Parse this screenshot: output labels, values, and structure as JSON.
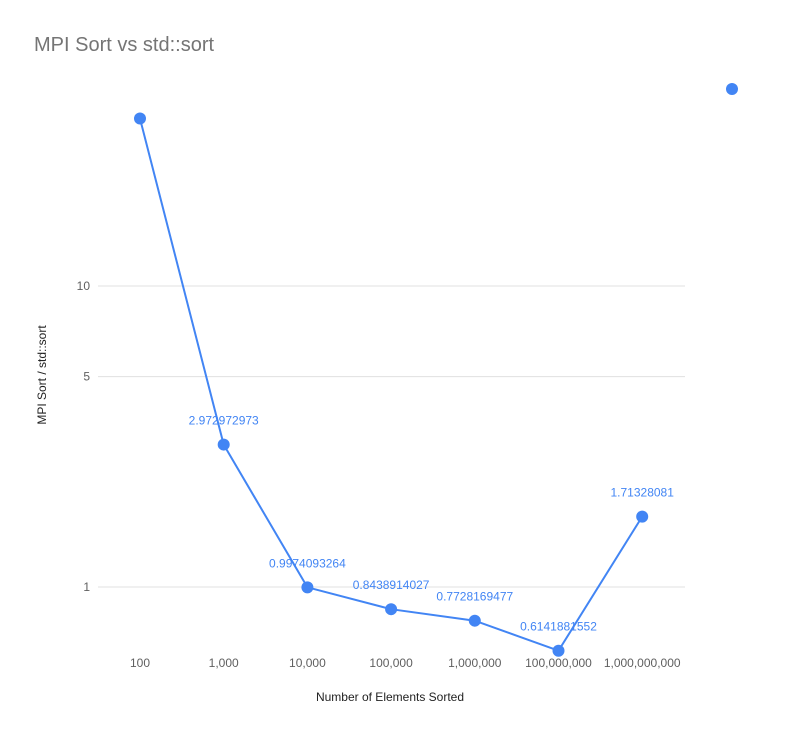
{
  "chart_data": {
    "type": "line",
    "title": "MPI Sort vs std::sort",
    "xlabel": "Number of Elements Sorted",
    "ylabel": "MPI Sort / std::sort",
    "yscale": "log",
    "ylim": [
      0.58,
      40
    ],
    "yticks": [
      {
        "value": 1,
        "label": "1"
      },
      {
        "value": 5,
        "label": "5"
      },
      {
        "value": 10,
        "label": "10"
      }
    ],
    "grid": true,
    "legend": "top-right",
    "series_color": "#4285f4",
    "categories": [
      "100",
      "1,000",
      "10,000",
      "100,000",
      "1,000,000",
      "100,000,000",
      "1,000,000,000"
    ],
    "series": [
      {
        "values": [
          36,
          2.972972973,
          0.9974093264,
          0.8438914027,
          0.7728169477,
          0.6141881552,
          1.71328081
        ],
        "labels": [
          "",
          "2.972972973",
          "0.9974093264",
          "0.8438914027",
          "0.7728169477",
          "0.6141881552",
          "1.71328081"
        ]
      }
    ]
  }
}
